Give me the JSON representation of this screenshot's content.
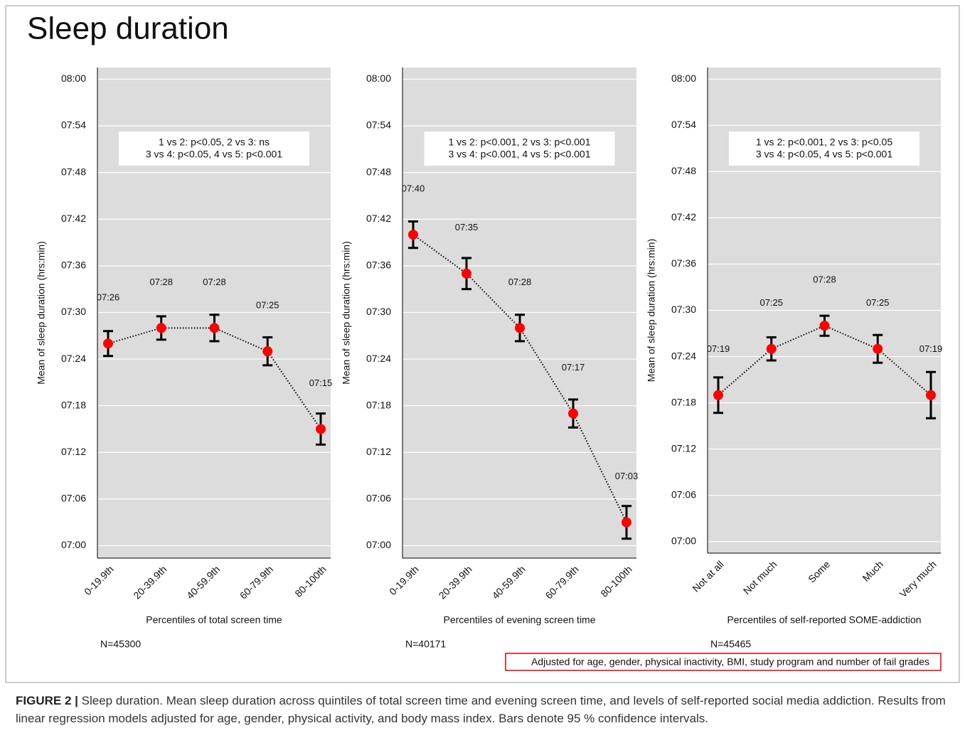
{
  "title": "Sleep duration",
  "chart_data": [
    {
      "type": "line",
      "categories": [
        "0-19.9th",
        "20-39.9th",
        "40-59.9th",
        "60-79.9th",
        "80-100th"
      ],
      "values": [
        446,
        448,
        448,
        445,
        435
      ],
      "value_labels": [
        "07:26",
        "07:28",
        "07:28",
        "07:25",
        "07:15"
      ],
      "errors": [
        1.6,
        1.5,
        1.7,
        1.8,
        2.0
      ],
      "color": "#ff0000",
      "annotation": [
        "1 vs 2: p<0.05, 2 vs 3: ns",
        "3 vs 4: p<0.05, 4 vs 5: p<0.001"
      ],
      "x_label": "Percentiles of total screen time",
      "y_label": "Mean of sleep duration (hrs:min)",
      "n_label": "N=45300",
      "ylim": [
        418.4,
        481.5
      ],
      "yticks": [
        {
          "value": 420,
          "label": "07:00"
        },
        {
          "value": 426,
          "label": "07:06"
        },
        {
          "value": 432,
          "label": "07:12"
        },
        {
          "value": 438,
          "label": "07:18"
        },
        {
          "value": 444,
          "label": "07:24"
        },
        {
          "value": 450,
          "label": "07:30"
        },
        {
          "value": 456,
          "label": "07:36"
        },
        {
          "value": 462,
          "label": "07:42"
        },
        {
          "value": 468,
          "label": "07:48"
        },
        {
          "value": 474,
          "label": "07:54"
        },
        {
          "value": 480,
          "label": "08:00"
        }
      ],
      "grid": true
    },
    {
      "type": "line",
      "categories": [
        "0-19.9th",
        "20-39.9th",
        "40-59.9th",
        "60-79.9th",
        "80-100th"
      ],
      "values": [
        460,
        455,
        448,
        437,
        423
      ],
      "value_labels": [
        "07:40",
        "07:35",
        "07:28",
        "07:17",
        "07:03"
      ],
      "errors": [
        1.7,
        2.0,
        1.7,
        1.8,
        2.1
      ],
      "color": "#ff0000",
      "annotation": [
        "1 vs 2: p<0.001, 2 vs 3: p<0.001",
        "3 vs 4: p<0.001, 4 vs 5: p<0.001"
      ],
      "x_label": "Percentiles of evening screen time",
      "y_label": "Mean of sleep duration (hrs:min)",
      "n_label": "N=40171",
      "ylim": [
        418.4,
        481.5
      ],
      "yticks": [
        {
          "value": 420,
          "label": "07:00"
        },
        {
          "value": 426,
          "label": "07:06"
        },
        {
          "value": 432,
          "label": "07:12"
        },
        {
          "value": 438,
          "label": "07:18"
        },
        {
          "value": 444,
          "label": "07:24"
        },
        {
          "value": 450,
          "label": "07:30"
        },
        {
          "value": 456,
          "label": "07:36"
        },
        {
          "value": 462,
          "label": "07:42"
        },
        {
          "value": 468,
          "label": "07:48"
        },
        {
          "value": 474,
          "label": "07:54"
        },
        {
          "value": 480,
          "label": "08:00"
        }
      ],
      "grid": true
    },
    {
      "type": "line",
      "categories": [
        "Not at all",
        "Not much",
        "Some",
        "Much",
        "Very much"
      ],
      "values": [
        439,
        445,
        448,
        445,
        439
      ],
      "value_labels": [
        "07:19",
        "07:25",
        "07:28",
        "07:25",
        "07:19"
      ],
      "errors": [
        2.3,
        1.5,
        1.3,
        1.8,
        3.0
      ],
      "color": "#ff0000",
      "annotation": [
        "1 vs 2: p<0.001, 2 vs 3: p<0.05",
        "3 vs 4: p<0.05, 4 vs 5: p<0.001"
      ],
      "x_label": "Percentiles of self-reported SOME-addiction",
      "y_label": "Mean of sleep duration (hrs:min)",
      "n_label": "N=45465",
      "ylim": [
        418.5,
        481.5
      ],
      "yticks": [
        {
          "value": 420,
          "label": "07:00"
        },
        {
          "value": 426,
          "label": "07:06"
        },
        {
          "value": 432,
          "label": "07:12"
        },
        {
          "value": 438,
          "label": "07:18"
        },
        {
          "value": 444,
          "label": "07:24"
        },
        {
          "value": 450,
          "label": "07:30"
        },
        {
          "value": 456,
          "label": "07:36"
        },
        {
          "value": 462,
          "label": "07:42"
        },
        {
          "value": 468,
          "label": "07:48"
        },
        {
          "value": 474,
          "label": "07:54"
        },
        {
          "value": 480,
          "label": "08:00"
        }
      ],
      "grid": true
    }
  ],
  "note": "Adjusted for age, gender, physical inactivity, BMI, study program and number of fail grades",
  "caption": {
    "label": "FIGURE 2 |",
    "text": "Sleep duration. Mean sleep duration across quintiles of total screen time and evening screen time, and levels of self-reported social media addiction. Results from linear regression models adjusted for age, gender, physical activity, and body mass index. Bars denote 95 % confidence intervals."
  }
}
